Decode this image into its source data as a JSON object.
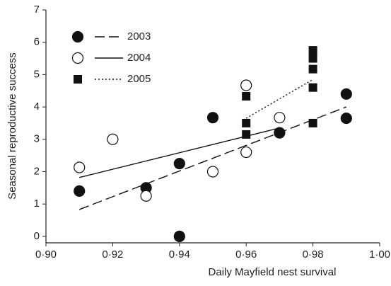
{
  "chart_data": {
    "type": "scatter",
    "x_label": "Daily Mayfield nest survival",
    "y_label": "Seasonal reproductive success",
    "xlim": [
      0.9,
      1.0
    ],
    "ylim": [
      -0.2,
      7
    ],
    "xticks": [
      {
        "value": 0.9,
        "label": "0·90"
      },
      {
        "value": 0.92,
        "label": "0·92"
      },
      {
        "value": 0.94,
        "label": "0·94"
      },
      {
        "value": 0.96,
        "label": "0·96"
      },
      {
        "value": 0.98,
        "label": "0·98"
      },
      {
        "value": 1.0,
        "label": "1·00"
      }
    ],
    "yticks": [
      0,
      1,
      2,
      3,
      4,
      5,
      6,
      7
    ],
    "legend": "upper-left",
    "series": [
      {
        "name": "2003",
        "color": "#111111",
        "marker": "filled-circle",
        "line": "dashed",
        "x": [
          0.91,
          0.93,
          0.94,
          0.94,
          0.95,
          0.97,
          0.99,
          0.99
        ],
        "values": [
          1.4,
          1.5,
          2.25,
          0,
          3.67,
          3.2,
          4.4,
          3.65
        ],
        "fit": {
          "x": [
            0.91,
            0.99
          ],
          "y": [
            0.83,
            4.0
          ]
        }
      },
      {
        "name": "2004",
        "color": "#111111",
        "marker": "open-circle",
        "line": "solid",
        "x": [
          0.91,
          0.92,
          0.93,
          0.95,
          0.96,
          0.96,
          0.97
        ],
        "values": [
          2.13,
          3.0,
          1.25,
          2.0,
          4.67,
          2.6,
          3.67
        ],
        "fit": {
          "x": [
            0.91,
            0.97
          ],
          "y": [
            1.82,
            3.35
          ]
        }
      },
      {
        "name": "2005",
        "color": "#111111",
        "marker": "filled-square",
        "line": "dotted",
        "x": [
          0.96,
          0.96,
          0.96,
          0.98,
          0.98,
          0.98,
          0.98,
          0.98
        ],
        "values": [
          4.33,
          3.5,
          3.15,
          5.75,
          5.5,
          5.17,
          4.6,
          3.5
        ],
        "fit": {
          "x": [
            0.96,
            0.98
          ],
          "y": [
            3.65,
            4.85
          ]
        }
      }
    ]
  }
}
